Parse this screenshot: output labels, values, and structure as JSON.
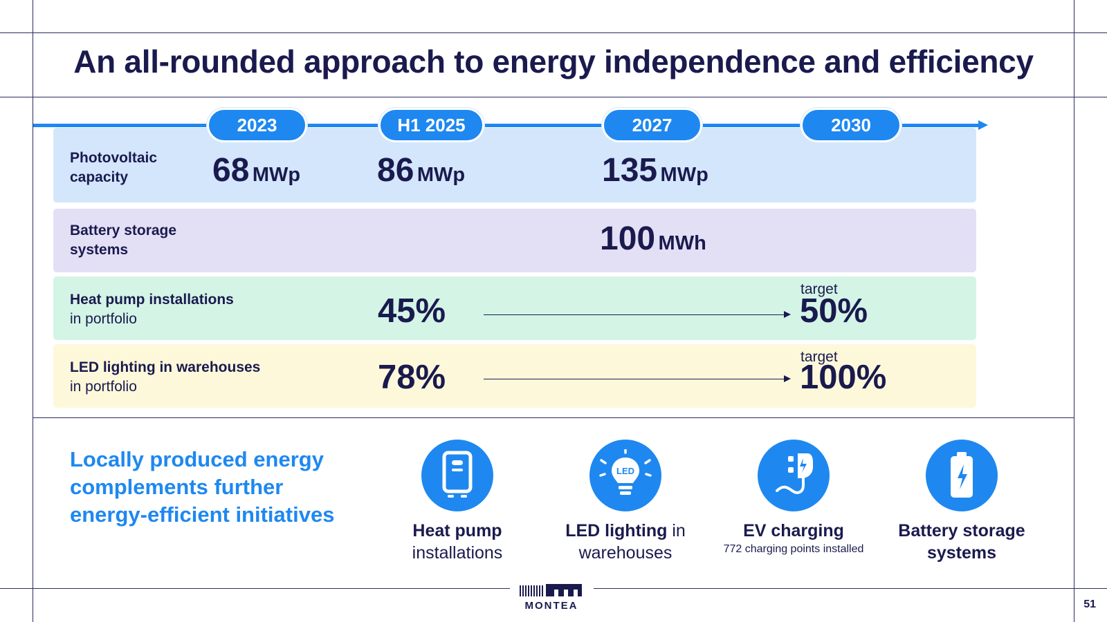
{
  "title": "An all-rounded approach to energy independence and efficiency",
  "timeline": {
    "years": [
      "2023",
      "H1 2025",
      "2027",
      "2030"
    ]
  },
  "rows": {
    "pv": {
      "label_line1": "Photovoltaic",
      "label_line2": "capacity",
      "values": [
        {
          "num": "68",
          "unit": "MWp"
        },
        {
          "num": "86",
          "unit": "MWp"
        },
        {
          "num": "135",
          "unit": "MWp"
        }
      ]
    },
    "battery": {
      "label_line1": "Battery storage",
      "label_line2": "systems",
      "value": {
        "num": "100",
        "unit": "MWh"
      }
    },
    "heatpump": {
      "label_bold": "Heat pump installations",
      "label_normal": "in portfolio",
      "current": "45%",
      "target_label": "target",
      "target": "50%"
    },
    "led": {
      "label_bold": "LED lighting in warehouses",
      "label_normal": "in portfolio",
      "current": "78%",
      "target_label": "target",
      "target": "100%"
    }
  },
  "bottom": {
    "heading": "Locally produced energy complements further energy-efficient initiatives",
    "items": [
      {
        "icon": "heat-pump-icon",
        "bold": "Heat pump",
        "normal": "installations",
        "sub": ""
      },
      {
        "icon": "led-bulb-icon",
        "bold": "LED lighting",
        "normal": "in warehouses",
        "sub": "",
        "icon_text": "LED"
      },
      {
        "icon": "ev-charging-icon",
        "bold": "EV charging",
        "normal": "",
        "sub": "772 charging points installed"
      },
      {
        "icon": "battery-icon",
        "bold": "Battery storage",
        "normal": "systems",
        "sub": ""
      }
    ]
  },
  "footer": {
    "logo_text": "MONTEA",
    "page_number": "51"
  },
  "colors": {
    "accent": "#1e88f0",
    "navy": "#1a1a4e",
    "row_pv": "#d3e6fc",
    "row_battery": "#e3dff5",
    "row_heatpump": "#d4f4e6",
    "row_led": "#fdf8da"
  }
}
